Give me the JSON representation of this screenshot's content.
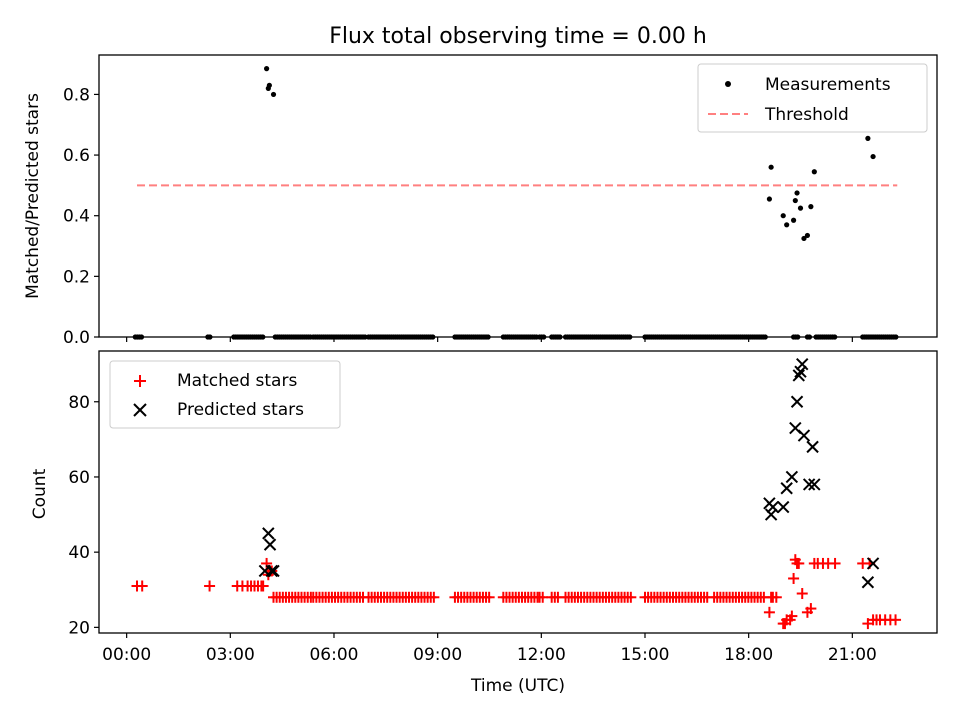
{
  "title": "Flux total observing time = 0.00 h",
  "chart_data": [
    {
      "type": "scatter",
      "ylabel": "Matched/Predicted stars",
      "xlabel": "",
      "xlim_hours": [
        -0.8,
        23.45
      ],
      "ylim": [
        0,
        0.93
      ],
      "yticks": [
        0.0,
        0.2,
        0.4,
        0.6,
        0.8
      ],
      "ytick_labels": [
        "0.0",
        "0.2",
        "0.4",
        "0.6",
        "0.8"
      ],
      "legend_position": "top-right",
      "series": [
        {
          "name": "Measurements",
          "kind": "dot",
          "color": "#000000",
          "x": [
            4.05,
            4.1,
            4.13,
            4.25,
            18.6,
            18.65,
            19.0,
            19.1,
            19.3,
            19.35,
            19.4,
            19.5,
            19.6,
            19.7,
            19.8,
            19.9,
            21.45,
            21.6
          ],
          "y": [
            0.885,
            0.82,
            0.83,
            0.8,
            0.455,
            0.56,
            0.4,
            0.37,
            0.385,
            0.45,
            0.475,
            0.425,
            0.325,
            0.335,
            0.43,
            0.545,
            0.655,
            0.595
          ]
        },
        {
          "name": "Measurements",
          "kind": "dot-zero-baseline",
          "color": "#000000",
          "y": 0,
          "x_ranges": [
            [
              0.25,
              0.45
            ],
            [
              2.35,
              2.45
            ],
            [
              3.1,
              3.95
            ],
            [
              4.3,
              5.35
            ],
            [
              5.4,
              6.9
            ],
            [
              7.0,
              8.9
            ],
            [
              9.5,
              10.5
            ],
            [
              10.9,
              11.9
            ],
            [
              11.95,
              12.1
            ],
            [
              12.3,
              12.55
            ],
            [
              12.7,
              14.6
            ],
            [
              15.0,
              18.5
            ],
            [
              19.3,
              19.45
            ],
            [
              19.7,
              19.8
            ],
            [
              19.95,
              20.5
            ],
            [
              21.3,
              22.3
            ]
          ]
        },
        {
          "name": "Threshold",
          "kind": "dashed-line",
          "color": "#ff8080",
          "x": [
            0.3,
            22.3
          ],
          "y": [
            0.5,
            0.5
          ]
        }
      ]
    },
    {
      "type": "scatter",
      "ylabel": "Count",
      "xlabel": "Time (UTC)",
      "xlim_hours": [
        -0.8,
        23.45
      ],
      "ylim": [
        18.5,
        93.5
      ],
      "yticks": [
        20,
        40,
        60,
        80
      ],
      "ytick_labels": [
        "20",
        "40",
        "60",
        "80"
      ],
      "xticks_hours": [
        0,
        3,
        6,
        9,
        12,
        15,
        18,
        21
      ],
      "xtick_labels": [
        "00:00",
        "03:00",
        "06:00",
        "09:00",
        "12:00",
        "15:00",
        "18:00",
        "21:00"
      ],
      "legend_position": "top-left",
      "series": [
        {
          "name": "Matched stars",
          "kind": "plus",
          "color": "#ff0000",
          "x": [
            0.3,
            0.45,
            2.4,
            3.2,
            3.35,
            3.5,
            3.6,
            3.7,
            3.8,
            3.9,
            3.95,
            4.05,
            4.1,
            4.2,
            18.6,
            18.65,
            18.7,
            18.8,
            19.0,
            19.05,
            19.1,
            19.2,
            19.25,
            19.3,
            19.35,
            19.4,
            19.45,
            19.55,
            19.7,
            19.8,
            19.9,
            20.0,
            20.15,
            20.3,
            20.5,
            21.3,
            21.45,
            21.5,
            21.6,
            21.7,
            21.8,
            21.95,
            22.1,
            22.25
          ],
          "y": [
            31,
            31,
            31,
            31,
            31,
            31,
            31,
            31,
            31,
            31,
            31,
            37,
            34,
            35,
            24,
            28,
            28,
            28,
            21,
            21,
            22,
            22,
            23,
            33,
            38,
            37,
            37,
            29,
            24,
            25,
            37,
            37,
            37,
            37,
            37,
            37,
            21,
            37,
            22,
            22,
            22,
            22,
            22,
            22
          ]
        },
        {
          "name": "Matched stars",
          "kind": "plus-baseline",
          "color": "#ff0000",
          "y": 28,
          "x_ranges": [
            [
              4.25,
              5.35
            ],
            [
              5.4,
              6.9
            ],
            [
              7.0,
              8.9
            ],
            [
              9.5,
              10.5
            ],
            [
              10.9,
              11.9
            ],
            [
              11.95,
              12.1
            ],
            [
              12.3,
              12.55
            ],
            [
              12.7,
              14.6
            ],
            [
              15.0,
              16.8
            ],
            [
              17.0,
              18.5
            ]
          ]
        },
        {
          "name": "Predicted stars",
          "kind": "x",
          "color": "#000000",
          "x": [
            4.0,
            4.1,
            4.15,
            4.2,
            4.25,
            18.6,
            18.65,
            18.7,
            19.0,
            19.1,
            19.25,
            19.35,
            19.4,
            19.45,
            19.5,
            19.55,
            19.6,
            19.75,
            19.85,
            19.9,
            21.45,
            21.6
          ],
          "y": [
            35,
            45,
            42,
            35,
            35,
            53,
            50,
            52,
            52,
            57,
            60,
            73,
            80,
            87,
            88,
            90,
            71,
            58,
            68,
            58,
            32,
            37
          ]
        }
      ]
    }
  ]
}
